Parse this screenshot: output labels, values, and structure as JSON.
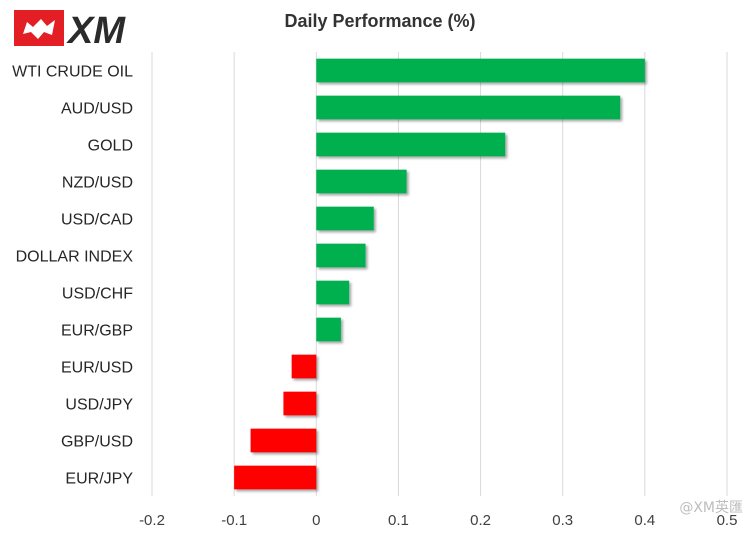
{
  "brand": {
    "logo_text": "XM",
    "watermark": "@XM英匯"
  },
  "colors": {
    "positive": "#00b050",
    "negative": "#ff0000",
    "grid": "#d9d9d9",
    "logo": "#e31e24"
  },
  "chart_data": {
    "type": "bar",
    "orientation": "horizontal",
    "title": "Daily Performance (%)",
    "xlabel": "",
    "ylabel": "",
    "xlim": [
      -0.2,
      0.5
    ],
    "xticks": [
      -0.2,
      -0.1,
      0,
      0.1,
      0.2,
      0.3,
      0.4,
      0.5
    ],
    "xtick_labels": [
      "-0.2",
      "-0.1",
      "0",
      "0.1",
      "0.2",
      "0.3",
      "0.4",
      "0.5"
    ],
    "grid": "vertical",
    "legend": "none",
    "categories": [
      "WTI CRUDE OIL",
      "AUD/USD",
      "GOLD",
      "NZD/USD",
      "USD/CAD",
      "DOLLAR INDEX",
      "USD/CHF",
      "EUR/GBP",
      "EUR/USD",
      "USD/JPY",
      "GBP/USD",
      "EUR/JPY"
    ],
    "values": [
      0.4,
      0.37,
      0.23,
      0.11,
      0.07,
      0.06,
      0.04,
      0.03,
      -0.03,
      -0.04,
      -0.08,
      -0.1
    ]
  }
}
